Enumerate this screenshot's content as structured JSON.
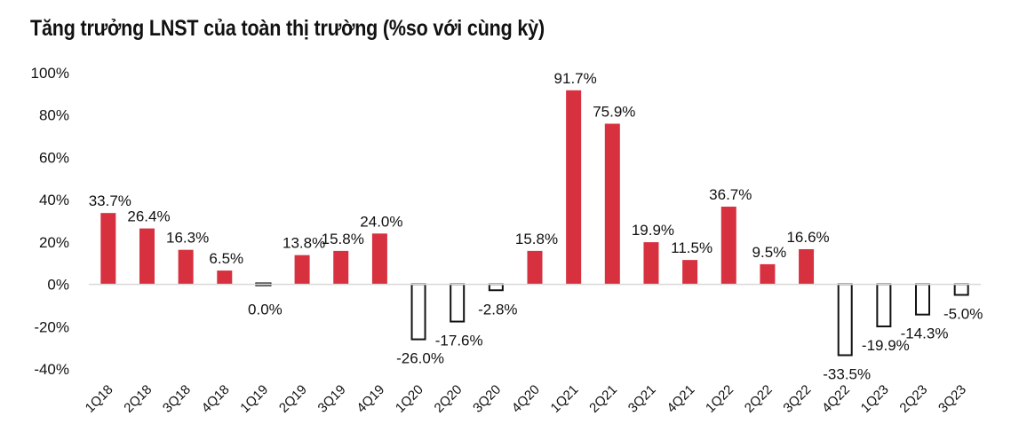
{
  "chart_data": {
    "type": "bar",
    "title": "Tăng trưởng LNST của toàn thị trường (%so với cùng kỳ)",
    "xlabel": "",
    "ylabel": "",
    "ylim": [
      -40,
      100
    ],
    "yticks": [
      100,
      80,
      60,
      40,
      20,
      0,
      -20,
      -40
    ],
    "ytick_labels": [
      "100%",
      "80%",
      "60%",
      "40%",
      "20%",
      "0%",
      "-20%",
      "-40%"
    ],
    "grid": false,
    "legend": "none",
    "categories": [
      "1Q18",
      "2Q18",
      "3Q18",
      "4Q18",
      "1Q19",
      "2Q19",
      "3Q19",
      "4Q19",
      "1Q20",
      "2Q20",
      "3Q20",
      "4Q20",
      "1Q21",
      "2Q21",
      "3Q21",
      "4Q21",
      "1Q22",
      "2Q22",
      "3Q22",
      "4Q22",
      "1Q23",
      "2Q23",
      "3Q23"
    ],
    "values": [
      33.7,
      26.4,
      16.3,
      6.5,
      0.0,
      13.8,
      15.8,
      24.0,
      -26.0,
      -17.6,
      -2.8,
      15.8,
      91.7,
      75.9,
      19.9,
      11.5,
      36.7,
      9.5,
      16.6,
      -33.5,
      -19.9,
      -14.3,
      -5.0
    ],
    "data_labels": [
      "33.7%",
      "26.4%",
      "16.3%",
      "6.5%",
      "0.0%",
      "13.8%",
      "15.8%",
      "24.0%",
      "-26.0%",
      "-17.6%",
      "-2.8%",
      "15.8%",
      "91.7%",
      "75.9%",
      "19.9%",
      "11.5%",
      "36.7%",
      "9.5%",
      "16.6%",
      "-33.5%",
      "-19.9%",
      "-14.3%",
      "-5.0%"
    ],
    "colors": {
      "positive": "#d7303f",
      "negative_fill": "#ffffff",
      "negative_stroke": "#111111",
      "axis": "#d9d9d9",
      "text": "#111111"
    }
  }
}
